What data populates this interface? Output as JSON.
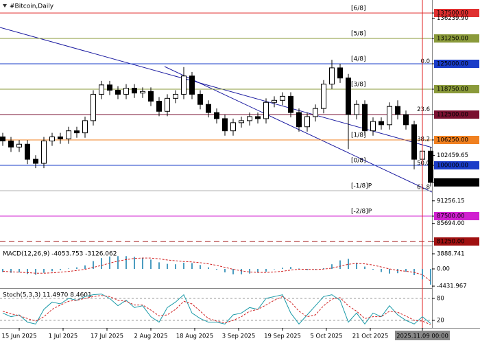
{
  "chart_data": [
    {
      "type": "candlestick",
      "title": "#Bitcoin,Daily",
      "x": [
        -6,
        -3,
        0,
        3,
        6,
        9,
        12,
        15,
        18,
        21,
        24,
        27,
        30,
        33,
        36,
        39,
        42,
        45,
        48,
        51,
        54,
        57,
        60,
        63,
        66,
        69,
        72,
        75,
        78,
        81,
        84,
        87,
        90,
        93,
        96,
        99,
        102,
        105,
        108,
        111,
        114,
        117,
        120,
        123,
        126,
        129,
        132,
        135,
        138,
        141,
        144,
        147,
        150
      ],
      "open": [
        107000,
        106000,
        104500,
        105200,
        101500,
        100500,
        106000,
        107000,
        106500,
        108500,
        108000,
        111000,
        117500,
        119800,
        118500,
        117500,
        119000,
        117800,
        118200,
        115800,
        113300,
        116500,
        117500,
        122000,
        117500,
        115000,
        113000,
        111500,
        108500,
        110500,
        111000,
        112000,
        111500,
        115500,
        116000,
        117000,
        113000,
        109500,
        112000,
        114000,
        120000,
        124000,
        121500,
        112500,
        115000,
        108500,
        110800,
        110000,
        114500,
        112500,
        110000,
        101500,
        103500
      ],
      "high": [
        108000,
        107000,
        106200,
        106200,
        102500,
        107000,
        108000,
        108000,
        109500,
        109500,
        112000,
        118500,
        120800,
        120800,
        119500,
        120000,
        120000,
        119200,
        119200,
        116800,
        117500,
        118500,
        124200,
        123000,
        118500,
        116000,
        114000,
        112500,
        111500,
        112000,
        113000,
        113000,
        116500,
        117000,
        118000,
        118000,
        114000,
        113000,
        115000,
        121000,
        126000,
        125000,
        122500,
        116000,
        116000,
        111800,
        111800,
        115500,
        116000,
        113500,
        111000,
        105000,
        104500
      ],
      "low": [
        104800,
        103300,
        103300,
        100300,
        99300,
        99300,
        104800,
        105300,
        105300,
        106800,
        106800,
        109800,
        116300,
        117300,
        116300,
        116300,
        116600,
        116600,
        114600,
        112100,
        112100,
        115300,
        116300,
        116300,
        113800,
        111800,
        110300,
        107300,
        107300,
        109300,
        109800,
        110300,
        110300,
        114300,
        114800,
        111800,
        108300,
        108300,
        110800,
        112800,
        118800,
        120300,
        104000,
        111300,
        107300,
        107300,
        108800,
        108800,
        111300,
        108800,
        99000,
        98500,
        94800
      ],
      "close": [
        106000,
        104500,
        105200,
        101500,
        100500,
        106000,
        107000,
        106500,
        108500,
        108000,
        111000,
        117500,
        119800,
        118500,
        117500,
        119000,
        117800,
        118200,
        115800,
        113300,
        116500,
        117500,
        122000,
        117500,
        115000,
        113000,
        111500,
        108500,
        110500,
        111000,
        112000,
        111500,
        115500,
        116000,
        117000,
        113000,
        109500,
        112000,
        114000,
        120000,
        124000,
        121500,
        112500,
        115000,
        108500,
        110800,
        110000,
        114500,
        112500,
        110000,
        101500,
        103500,
        95800.43
      ],
      "up_color": "#ffffff",
      "down_color": "#000000",
      "xlim": [
        -7,
        150.5
      ],
      "xticks": [
        {
          "value": 0,
          "label": "15 Jun 2025"
        },
        {
          "value": 16,
          "label": "1 Jul 2025"
        },
        {
          "value": 32,
          "label": "17 Jul 2025"
        },
        {
          "value": 48,
          "label": "2 Aug 2025"
        },
        {
          "value": 64,
          "label": "18 Aug 2025"
        },
        {
          "value": 80,
          "label": "3 Sep 2025"
        },
        {
          "value": 96,
          "label": "19 Sep 2025"
        },
        {
          "value": 112,
          "label": "5 Oct 2025"
        },
        {
          "value": 128,
          "label": "21 Oct 2025"
        },
        {
          "value": 147,
          "label": "2025.11.09 00:00",
          "highlight": true
        }
      ],
      "ylim": [
        80240,
        140710
      ],
      "yticks": [
        {
          "value": 137500,
          "label": "137500.00",
          "color": "#e03030"
        },
        {
          "value": 136239.9,
          "label": "136239.90"
        },
        {
          "value": 131250,
          "label": "131250.00",
          "color": "#8a9a3a"
        },
        {
          "value": 125000,
          "label": "125000.00",
          "color": "#1a3cc8"
        },
        {
          "value": 118750,
          "label": "118750.00",
          "color": "#8a9a3a"
        },
        {
          "value": 112500,
          "label": "112500.00",
          "color": "#7a1030"
        },
        {
          "value": 106250,
          "label": "106250.00",
          "color": "#f08020"
        },
        {
          "value": 102459.65,
          "label": "102459.65"
        },
        {
          "value": 100000,
          "label": "100000.00",
          "color": "#1a3cc8"
        },
        {
          "value": 95800.43,
          "label": "95800.43",
          "color": "#000000"
        },
        {
          "value": 91256.15,
          "label": "91256.15"
        },
        {
          "value": 87500,
          "label": "87500.00",
          "color": "#d020d0"
        },
        {
          "value": 85694,
          "label": "85694.00"
        },
        {
          "value": 81250,
          "label": "81250.00",
          "color": "#a01010"
        }
      ],
      "levels": [
        {
          "value": 137500,
          "label": "[6/8]",
          "color": "#e03030"
        },
        {
          "value": 131250,
          "label": "[5/8]",
          "color": "#8a9a3a"
        },
        {
          "value": 125000,
          "label": "[4/8]",
          "color": "#1a3cc8"
        },
        {
          "value": 118750,
          "label": "[3/8]",
          "color": "#8a9a3a"
        },
        {
          "value": 112500,
          "color": "#7a1030"
        },
        {
          "value": 106250,
          "label": "[1/8]",
          "color": "#f08020"
        },
        {
          "value": 100000,
          "label": "[0/8]",
          "color": "#1a3cc8"
        },
        {
          "value": 93750,
          "label": "[-1/8]P",
          "color": "#b0b0b0"
        },
        {
          "value": 87500,
          "label": "[-2/8]P",
          "color": "#d020d0"
        },
        {
          "value": 81250,
          "color": "#a01010",
          "dashed": true
        }
      ],
      "fib": [
        {
          "value": 125600,
          "label": "0.0"
        },
        {
          "value": 113800,
          "label": "23.6"
        },
        {
          "value": 106400,
          "label": "38.2"
        },
        {
          "value": 100500,
          "label": "50.0"
        },
        {
          "value": 94600,
          "label": "61.8"
        }
      ]
    },
    {
      "type": "macd",
      "title": "MACD(12,26,9) -4053.753 -3126.062",
      "histogram": [
        -800,
        -1000,
        -900,
        -1300,
        -1500,
        -1000,
        -600,
        -300,
        100,
        400,
        900,
        2000,
        2800,
        3200,
        3300,
        3300,
        3100,
        2900,
        2400,
        1700,
        1300,
        1200,
        1600,
        1500,
        1000,
        400,
        -200,
        -900,
        -1400,
        -1400,
        -1200,
        -900,
        -700,
        -100,
        300,
        500,
        100,
        -300,
        -200,
        200,
        1200,
        2200,
        2600,
        1600,
        600,
        -200,
        -800,
        -1200,
        -1100,
        -700,
        -1600,
        -2700,
        -4050
      ],
      "signal": [
        -600,
        -750,
        -850,
        -950,
        -1100,
        -1100,
        -1000,
        -850,
        -650,
        -400,
        -100,
        400,
        900,
        1500,
        2000,
        2400,
        2700,
        2800,
        2800,
        2600,
        2300,
        2100,
        1900,
        1800,
        1600,
        1300,
        900,
        400,
        -100,
        -500,
        -800,
        -900,
        -900,
        -800,
        -600,
        -300,
        -100,
        -100,
        -150,
        -50,
        200,
        700,
        1200,
        1400,
        1300,
        1000,
        500,
        0,
        -400,
        -600,
        -900,
        -1500,
        -3126
      ],
      "bar_color": "#4a9cc0",
      "signal_color": "#d02020",
      "ylim": [
        -4950,
        5830
      ],
      "yticks": [
        3888.741,
        {
          "value": 0,
          "label": "0.00"
        },
        -4431.967
      ]
    },
    {
      "type": "stochastic",
      "title": "Stoch(5,3,3) 11.4970 8.4601",
      "main": [
        40,
        30,
        35,
        15,
        10,
        50,
        70,
        65,
        80,
        75,
        85,
        90,
        92,
        80,
        60,
        75,
        55,
        60,
        30,
        15,
        55,
        70,
        90,
        40,
        25,
        15,
        15,
        10,
        35,
        40,
        55,
        50,
        80,
        85,
        90,
        40,
        10,
        35,
        60,
        85,
        90,
        75,
        15,
        40,
        10,
        40,
        30,
        60,
        35,
        20,
        10,
        30,
        11.497
      ],
      "signal": [
        45,
        38,
        33,
        25,
        18,
        30,
        50,
        62,
        72,
        75,
        80,
        85,
        88,
        85,
        75,
        72,
        62,
        62,
        48,
        32,
        35,
        50,
        72,
        65,
        45,
        25,
        18,
        13,
        20,
        30,
        45,
        50,
        62,
        75,
        85,
        70,
        45,
        30,
        35,
        60,
        78,
        82,
        60,
        45,
        25,
        30,
        30,
        45,
        42,
        32,
        20,
        18,
        8.4601
      ],
      "main_color": "#1a9aa8",
      "signal_color": "#d02020",
      "ylim": [
        -0.6,
        106.2
      ],
      "yticks": [
        80,
        20
      ],
      "grid": true
    }
  ]
}
